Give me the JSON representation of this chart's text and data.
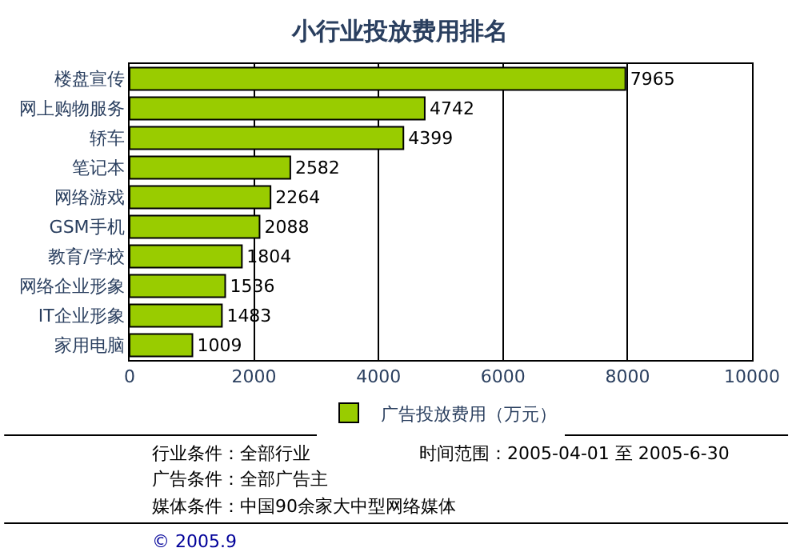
{
  "chart_data": {
    "type": "bar",
    "orientation": "horizontal",
    "title": "小行业投放费用排名",
    "categories": [
      "楼盘宣传",
      "网上购物服务",
      "轿车",
      "笔记本",
      "网络游戏",
      "GSM手机",
      "教育/学校",
      "网络企业形象",
      "IT企业形象",
      "家用电脑"
    ],
    "series": [
      {
        "name": "广告投放费用（万元）",
        "color": "#99cc00",
        "values": [
          7965,
          4742,
          4399,
          2582,
          2264,
          2088,
          1804,
          1536,
          1483,
          1009
        ]
      }
    ],
    "data_labels": true,
    "xlim": [
      0,
      10000
    ],
    "xticks": [
      0,
      2000,
      4000,
      6000,
      8000,
      10000
    ],
    "grid": "x",
    "legend": "bottom",
    "annotations": [
      "行业条件：全部行业",
      "广告条件：全部广告主",
      "媒体条件：中国90余家大中型网络媒体",
      "时间范围：2005-04-01 至 2005-6-30",
      "© 2005.9"
    ]
  }
}
